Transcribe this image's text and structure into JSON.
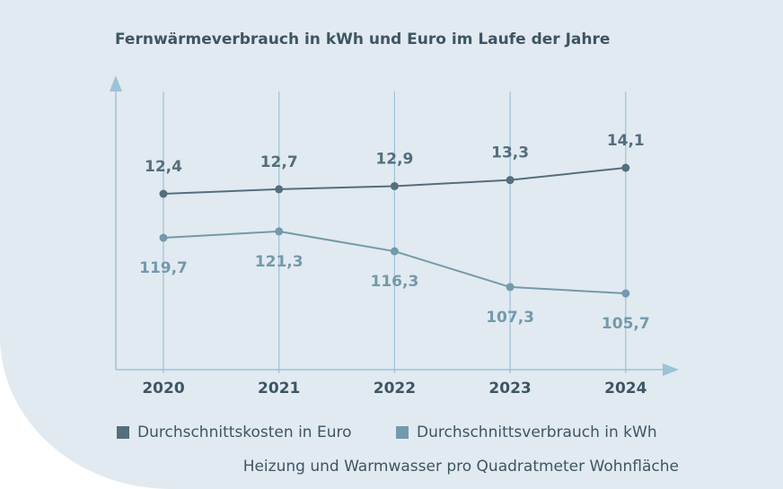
{
  "chart_data": {
    "type": "line",
    "title": "Fernwärmeverbrauch in kWh und Euro im Laufe der Jahre",
    "categories": [
      "2020",
      "2021",
      "2022",
      "2023",
      "2024"
    ],
    "series": [
      {
        "name": "Durchschnittskosten in Euro",
        "values": [
          12.4,
          12.7,
          12.9,
          13.3,
          14.1
        ],
        "labels": [
          "12,4",
          "12,7",
          "12,9",
          "13,3",
          "14,1"
        ],
        "color": "#546e7d"
      },
      {
        "name": "Durchschnittsverbrauch in kWh",
        "values": [
          119.7,
          121.3,
          116.3,
          107.3,
          105.7
        ],
        "labels": [
          "119,7",
          "121,3",
          "116,3",
          "107,3",
          "105,7"
        ],
        "color": "#7499ab"
      }
    ],
    "grid": "vertical",
    "legend": "bottom",
    "note": "Heizung und Warmwasser pro Quadratmeter Wohnfläche",
    "axis_color": "#9cc3d8"
  }
}
